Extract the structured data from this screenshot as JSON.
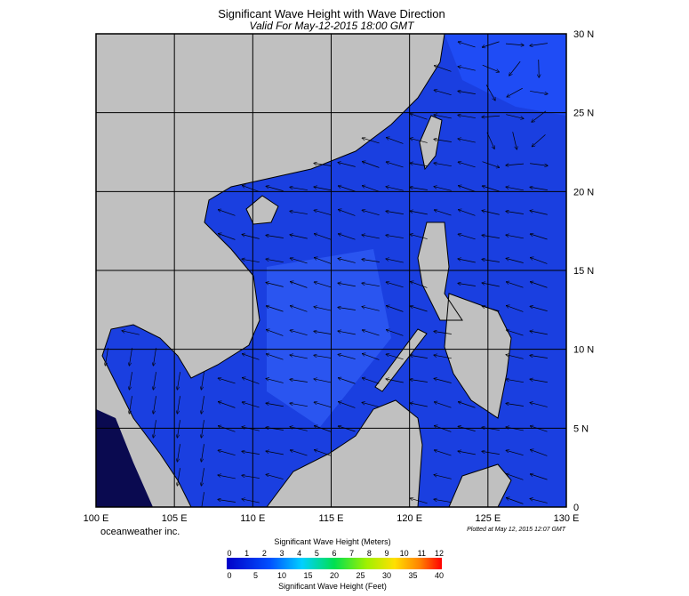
{
  "header": {
    "title": "Significant Wave Height with Wave Direction",
    "subtitle": "Valid For May-12-2015 18:00 GMT"
  },
  "map": {
    "longitude_labels": [
      "100 E",
      "105 E",
      "110 E",
      "115 E",
      "120 E",
      "125 E",
      "130 E"
    ],
    "latitude_labels": [
      "30 N",
      "25 N",
      "20 N",
      "15 N",
      "10 N",
      "5 N",
      "0"
    ],
    "credit": "oceanweather inc.",
    "plot_note": "Plotted at May 12, 2015 12:07 GMT"
  },
  "colorbar": {
    "meters_title": "Significant Wave Height (Meters)",
    "meters_ticks": [
      "0",
      "1",
      "2",
      "3",
      "4",
      "5",
      "6",
      "7",
      "8",
      "9",
      "10",
      "11",
      "12"
    ],
    "feet_ticks": [
      "0",
      "5",
      "10",
      "15",
      "20",
      "25",
      "30",
      "35",
      "40"
    ],
    "feet_title": "Significant Wave Height (Feet)"
  }
}
